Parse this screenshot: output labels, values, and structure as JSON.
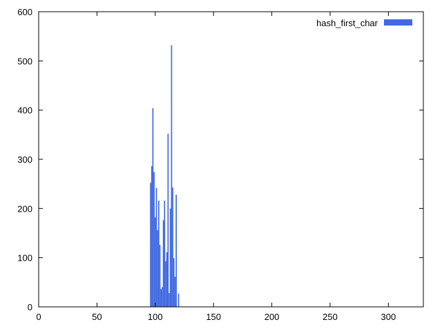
{
  "chart_data": {
    "type": "bar",
    "series": [
      {
        "name": "hash_first_char",
        "color": "#4169e1",
        "x": [
          96,
          97,
          98,
          99,
          100,
          101,
          102,
          103,
          104,
          105,
          106,
          107,
          108,
          109,
          110,
          111,
          112,
          113,
          114,
          115,
          116,
          117,
          118,
          119,
          120
        ],
        "values": [
          252,
          286,
          404,
          274,
          182,
          242,
          156,
          216,
          126,
          36,
          40,
          176,
          216,
          93,
          111,
          352,
          28,
          200,
          532,
          243,
          99,
          61,
          228,
          0,
          27
        ]
      }
    ],
    "xlim": [
      0,
      330
    ],
    "ylim": [
      0,
      600
    ],
    "xticks": [
      0,
      50,
      100,
      150,
      200,
      250,
      300
    ],
    "yticks": [
      0,
      100,
      200,
      300,
      400,
      500,
      600
    ],
    "legend_position": "top-right",
    "grid": false
  }
}
